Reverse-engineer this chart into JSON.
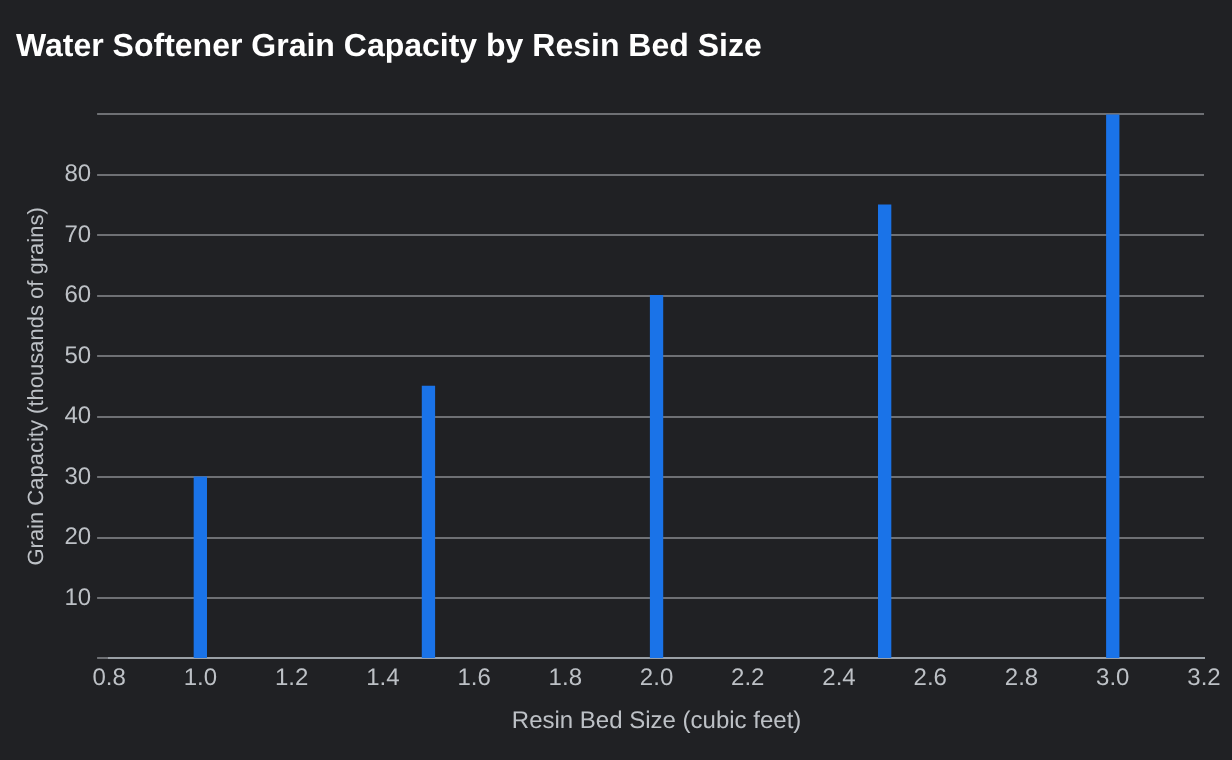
{
  "chart_data": {
    "type": "bar",
    "title": "Water Softener Grain Capacity by Resin Bed Size",
    "xlabel": "Resin Bed Size (cubic feet)",
    "ylabel": "Grain Capacity (thousands of grains)",
    "x": [
      1.0,
      1.5,
      2.0,
      2.5,
      3.0
    ],
    "series": [
      {
        "color": "#1a73e8",
        "values": [
          30,
          45,
          60,
          75,
          90
        ]
      }
    ],
    "xlim": [
      0.8,
      3.2
    ],
    "xticks": [
      {
        "value": 0.8,
        "label": "0.8"
      },
      {
        "value": 1.0,
        "label": "1.0"
      },
      {
        "value": 1.2,
        "label": "1.2"
      },
      {
        "value": 1.4,
        "label": "1.4"
      },
      {
        "value": 1.6,
        "label": "1.6"
      },
      {
        "value": 1.8,
        "label": "1.8"
      },
      {
        "value": 2.0,
        "label": "2.0"
      },
      {
        "value": 2.2,
        "label": "2.2"
      },
      {
        "value": 2.4,
        "label": "2.4"
      },
      {
        "value": 2.6,
        "label": "2.6"
      },
      {
        "value": 2.8,
        "label": "2.8"
      },
      {
        "value": 3.0,
        "label": "3.0"
      },
      {
        "value": 3.2,
        "label": "3.2"
      }
    ],
    "ylim": [
      0,
      90
    ],
    "yticks": [
      {
        "value": 0,
        "label": null
      },
      10,
      20,
      30,
      40,
      50,
      60,
      70,
      80,
      {
        "value": 90,
        "label": null
      }
    ],
    "grid": "y",
    "legend": false
  }
}
